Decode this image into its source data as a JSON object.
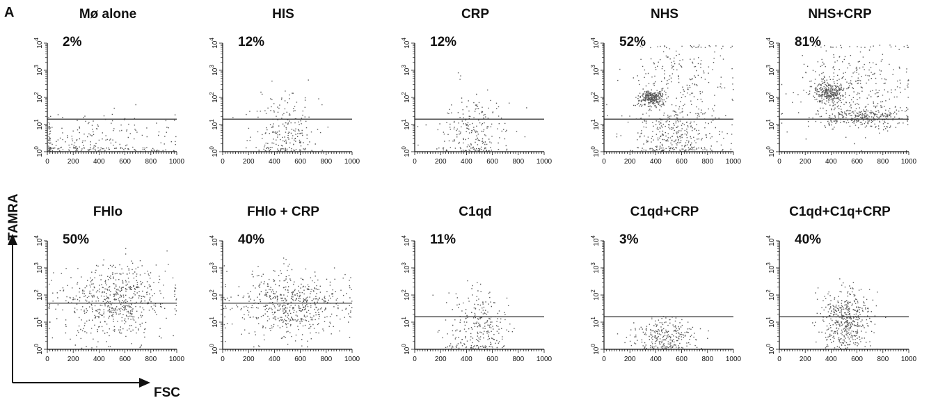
{
  "panel_letter": "A",
  "axis_arrows": {
    "ylabel": "TAMRA",
    "xlabel": "FSC"
  },
  "chart_data": [
    {
      "type": "scatter",
      "title": "Mø alone",
      "percent": "2%",
      "xlim": [
        0,
        1000
      ],
      "ylim_log10": [
        0,
        4
      ],
      "gate_log10": 1.2,
      "x_ticks": [
        "0",
        "200",
        "400",
        "600",
        "800",
        "1000"
      ],
      "y_ticks": [
        "10^0",
        "10^1",
        "10^2",
        "10^3",
        "10^4"
      ],
      "clusters": [
        {
          "x": [
            340,
            380
          ],
          "y": [
            0.3,
            0.6
          ],
          "n": 260
        }
      ]
    },
    {
      "type": "scatter",
      "title": "HIS",
      "percent": "12%",
      "xlim": [
        0,
        1000
      ],
      "ylim_log10": [
        0,
        4
      ],
      "gate_log10": 1.2,
      "x_ticks": [
        "0",
        "200",
        "400",
        "600",
        "800",
        "1000"
      ],
      "y_ticks": [
        "10^0",
        "10^1",
        "10^2",
        "10^3",
        "10^4"
      ],
      "clusters": [
        {
          "x": [
            480,
            130
          ],
          "y": [
            0.7,
            0.7
          ],
          "n": 230
        }
      ]
    },
    {
      "type": "scatter",
      "title": "CRP",
      "percent": "12%",
      "xlim": [
        0,
        1000
      ],
      "ylim_log10": [
        0,
        4
      ],
      "gate_log10": 1.2,
      "x_ticks": [
        "0",
        "200",
        "400",
        "600",
        "800",
        "1000"
      ],
      "y_ticks": [
        "10^0",
        "10^1",
        "10^2",
        "10^3",
        "10^4"
      ],
      "clusters": [
        {
          "x": [
            440,
            140
          ],
          "y": [
            0.7,
            0.7
          ],
          "n": 240
        }
      ]
    },
    {
      "type": "scatter",
      "title": "NHS",
      "percent": "52%",
      "xlim": [
        0,
        1000
      ],
      "ylim_log10": [
        0,
        4
      ],
      "gate_log10": 1.2,
      "x_ticks": [
        "0",
        "200",
        "400",
        "600",
        "800",
        "1000"
      ],
      "y_ticks": [
        "10^0",
        "10^1",
        "10^2",
        "10^3",
        "10^4"
      ],
      "clusters": [
        {
          "x": [
            370,
            50
          ],
          "y": [
            2.0,
            0.15
          ],
          "n": 260
        },
        {
          "x": [
            550,
            170
          ],
          "y": [
            0.75,
            0.6
          ],
          "n": 360
        },
        {
          "x": [
            600,
            220
          ],
          "y": [
            2.8,
            0.8
          ],
          "n": 200
        }
      ]
    },
    {
      "type": "scatter",
      "title": "NHS+CRP",
      "percent": "81%",
      "xlim": [
        0,
        1000
      ],
      "ylim_log10": [
        0,
        4
      ],
      "gate_log10": 1.2,
      "x_ticks": [
        "0",
        "200",
        "400",
        "600",
        "800",
        "1000"
      ],
      "y_ticks": [
        "10^0",
        "10^1",
        "10^2",
        "10^3",
        "10^4"
      ],
      "clusters": [
        {
          "x": [
            380,
            50
          ],
          "y": [
            2.2,
            0.2
          ],
          "n": 260
        },
        {
          "x": [
            650,
            160
          ],
          "y": [
            1.3,
            0.2
          ],
          "n": 300
        },
        {
          "x": [
            560,
            220
          ],
          "y": [
            2.5,
            0.9
          ],
          "n": 320
        }
      ]
    },
    {
      "type": "scatter",
      "title": "FHlo",
      "percent": "50%",
      "xlim": [
        0,
        1000
      ],
      "ylim_log10": [
        0,
        4
      ],
      "gate_log10": 1.7,
      "x_ticks": [
        "0",
        "200",
        "400",
        "600",
        "800",
        "1000"
      ],
      "y_ticks": [
        "10^0",
        "10^1",
        "10^2",
        "10^3",
        "10^4"
      ],
      "clusters": [
        {
          "x": [
            520,
            220
          ],
          "y": [
            1.8,
            0.65
          ],
          "n": 620
        }
      ]
    },
    {
      "type": "scatter",
      "title": "FHlo + CRP",
      "percent": "40%",
      "xlim": [
        0,
        1000
      ],
      "ylim_log10": [
        0,
        4
      ],
      "gate_log10": 1.7,
      "x_ticks": [
        "0",
        "200",
        "400",
        "600",
        "800",
        "1000"
      ],
      "y_ticks": [
        "10^0",
        "10^1",
        "10^2",
        "10^3",
        "10^4"
      ],
      "clusters": [
        {
          "x": [
            520,
            220
          ],
          "y": [
            1.7,
            0.6
          ],
          "n": 600
        }
      ]
    },
    {
      "type": "scatter",
      "title": "C1qd",
      "percent": "11%",
      "xlim": [
        0,
        1000
      ],
      "ylim_log10": [
        0,
        4
      ],
      "gate_log10": 1.2,
      "x_ticks": [
        "0",
        "200",
        "400",
        "600",
        "800",
        "1000"
      ],
      "y_ticks": [
        "10^0",
        "10^1",
        "10^2",
        "10^3",
        "10^4"
      ],
      "clusters": [
        {
          "x": [
            480,
            120
          ],
          "y": [
            0.75,
            0.65
          ],
          "n": 260
        }
      ]
    },
    {
      "type": "scatter",
      "title": "C1qd+CRP",
      "percent": "3%",
      "xlim": [
        0,
        1000
      ],
      "ylim_log10": [
        0,
        4
      ],
      "gate_log10": 1.2,
      "x_ticks": [
        "0",
        "200",
        "400",
        "600",
        "800",
        "1000"
      ],
      "y_ticks": [
        "10^0",
        "10^1",
        "10^2",
        "10^3",
        "10^4"
      ],
      "clusters": [
        {
          "x": [
            470,
            120
          ],
          "y": [
            0.5,
            0.35
          ],
          "n": 260
        }
      ]
    },
    {
      "type": "scatter",
      "title": "C1qd+C1q+CRP",
      "percent": "40%",
      "xlim": [
        0,
        1000
      ],
      "ylim_log10": [
        0,
        4
      ],
      "gate_log10": 1.2,
      "x_ticks": [
        "0",
        "200",
        "400",
        "600",
        "800",
        "1000"
      ],
      "y_ticks": [
        "10^0",
        "10^1",
        "10^2",
        "10^3",
        "10^4"
      ],
      "clusters": [
        {
          "x": [
            520,
            90
          ],
          "y": [
            1.1,
            0.55
          ],
          "n": 460
        }
      ]
    }
  ]
}
